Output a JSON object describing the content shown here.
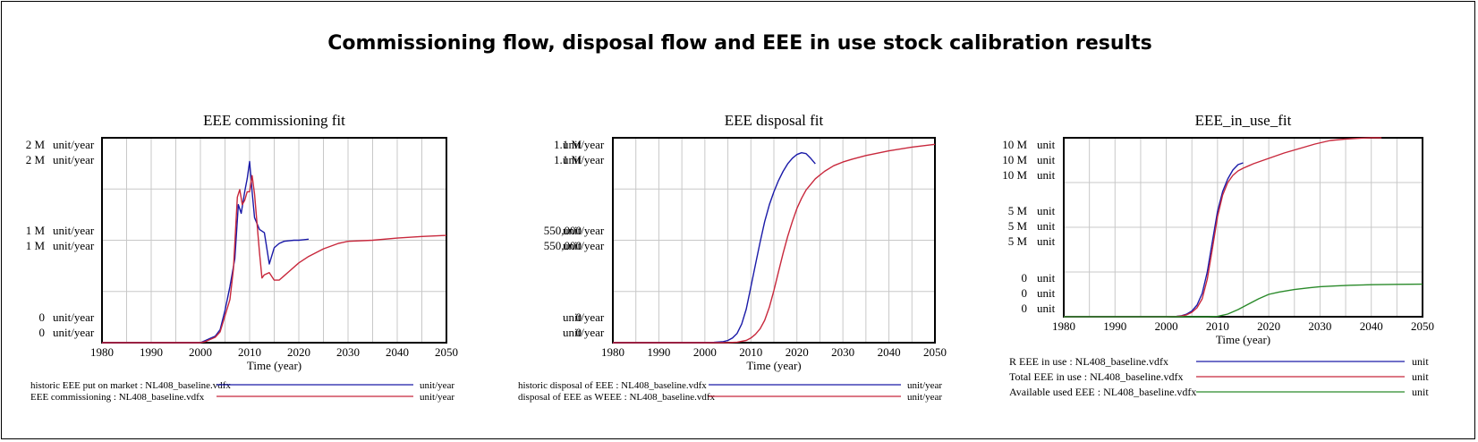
{
  "page_title": "Commissioning flow, disposal flow and EEE in use stock calibration results",
  "colors": {
    "blue": "#1a1aa8",
    "red": "#c8283c",
    "green": "#2a8a2a",
    "grid": "#c8c8c8"
  },
  "chart_data": [
    {
      "type": "line",
      "title": "EEE commissioning fit",
      "xlabel": "Time (year)",
      "xlim": [
        1980,
        2050
      ],
      "xticks": [
        "1980",
        "1990",
        "2000",
        "2010",
        "2020",
        "2030",
        "2040",
        "2050"
      ],
      "yunit": "unit/year",
      "yticks": [
        {
          "label": "2 M",
          "unit": "unit/year"
        },
        {
          "label": "2 M",
          "unit": "unit/year"
        },
        {
          "label": "1 M",
          "unit": "unit/year"
        },
        {
          "label": "1 M",
          "unit": "unit/year"
        },
        {
          "label": "0",
          "unit": "unit/year"
        },
        {
          "label": "0",
          "unit": "unit/year"
        }
      ],
      "ylim": [
        0,
        1.9
      ],
      "series": [
        {
          "name": "historic EEE put on market : NL408_baseline.vdfx",
          "unit": "unit/year",
          "color": "#1a1aa8",
          "x": [
            1980,
            2000,
            2001,
            2002,
            2003,
            2004,
            2005,
            2006,
            2007,
            2007.7,
            2008.3,
            2009,
            2009.5,
            2010,
            2010.5,
            2011,
            2012,
            2013,
            2014,
            2015,
            2016,
            2017,
            2018,
            2019,
            2020,
            2021,
            2022
          ],
          "y": [
            0,
            0,
            0.02,
            0.04,
            0.06,
            0.12,
            0.3,
            0.52,
            0.78,
            1.28,
            1.2,
            1.4,
            1.52,
            1.68,
            1.4,
            1.16,
            1.05,
            1.02,
            0.73,
            0.88,
            0.92,
            0.94,
            0.945,
            0.95,
            0.95,
            0.955,
            0.96
          ]
        },
        {
          "name": "EEE commissioning : NL408_baseline.vdfx",
          "unit": "unit/year",
          "color": "#c8283c",
          "x": [
            1980,
            2000,
            2001,
            2002,
            2003,
            2004,
            2005,
            2006,
            2006.7,
            2007.5,
            2008,
            2008.5,
            2009,
            2009.5,
            2010,
            2010.5,
            2011,
            2012,
            2012.5,
            2013,
            2014,
            2015,
            2016,
            2017,
            2018,
            2020,
            2022,
            2025,
            2028,
            2030,
            2035,
            2040,
            2045,
            2050
          ],
          "y": [
            0,
            0,
            0.01,
            0.03,
            0.05,
            0.1,
            0.25,
            0.4,
            0.68,
            1.35,
            1.42,
            1.28,
            1.32,
            1.4,
            1.4,
            1.55,
            1.38,
            0.84,
            0.6,
            0.63,
            0.65,
            0.58,
            0.58,
            0.62,
            0.66,
            0.74,
            0.8,
            0.87,
            0.92,
            0.94,
            0.95,
            0.97,
            0.985,
            0.995
          ]
        }
      ]
    },
    {
      "type": "line",
      "title": "EEE disposal fit",
      "xlabel": "Time (year)",
      "xlim": [
        1980,
        2050
      ],
      "xticks": [
        "1980",
        "1990",
        "2000",
        "2010",
        "2020",
        "2030",
        "2040",
        "2050"
      ],
      "yunit": "unit/year",
      "yticks": [
        {
          "label": "1.1 M",
          "unit": "unit/year"
        },
        {
          "label": "1.1 M",
          "unit": "unit/year"
        },
        {
          "label": "550,000",
          "unit": "unit/year"
        },
        {
          "label": "550,000",
          "unit": "unit/year"
        },
        {
          "label": "0",
          "unit": "unit/year"
        },
        {
          "label": "0",
          "unit": "unit/year"
        }
      ],
      "ylim": [
        0,
        1100000
      ],
      "series": [
        {
          "name": "historic disposal of EEE : NL408_baseline.vdfx",
          "unit": "unit/year",
          "color": "#1a1aa8",
          "x": [
            1980,
            2000,
            2002,
            2004,
            2005,
            2006,
            2007,
            2008,
            2009,
            2010,
            2011,
            2012,
            2013,
            2014,
            2015,
            2016,
            2017,
            2018,
            2019,
            2020,
            2021,
            2022,
            2023,
            2024
          ],
          "y": [
            0,
            0,
            2000,
            6000,
            12000,
            25000,
            50000,
            100000,
            180000,
            300000,
            420000,
            540000,
            650000,
            740000,
            810000,
            870000,
            920000,
            960000,
            990000,
            1010000,
            1020000,
            1015000,
            990000,
            960000
          ]
        },
        {
          "name": "disposal of EEE as WEEE : NL408_baseline.vdfx",
          "unit": "unit/year",
          "color": "#c8283c",
          "x": [
            1980,
            2005,
            2007,
            2009,
            2010,
            2011,
            2012,
            2013,
            2014,
            2015,
            2016,
            2017,
            2018,
            2019,
            2020,
            2021,
            2022,
            2024,
            2026,
            2028,
            2030,
            2032,
            2035,
            2040,
            2045,
            2050
          ],
          "y": [
            0,
            0,
            3000,
            12000,
            25000,
            45000,
            75000,
            120000,
            190000,
            280000,
            380000,
            480000,
            570000,
            650000,
            720000,
            775000,
            820000,
            880000,
            920000,
            950000,
            970000,
            985000,
            1005000,
            1030000,
            1050000,
            1065000
          ]
        }
      ]
    },
    {
      "type": "line",
      "title": "EEE_in_use_fit",
      "xlabel": "Time (year)",
      "xlim": [
        1980,
        2050
      ],
      "xticks": [
        "1980",
        "1990",
        "2000",
        "2010",
        "2020",
        "2030",
        "2040",
        "2050"
      ],
      "yunit": "unit",
      "yticks": [
        {
          "label": "10 M",
          "unit": "unit"
        },
        {
          "label": "10 M",
          "unit": "unit"
        },
        {
          "label": "10 M",
          "unit": "unit"
        },
        {
          "label": "5 M",
          "unit": "unit"
        },
        {
          "label": "5 M",
          "unit": "unit"
        },
        {
          "label": "5 M",
          "unit": "unit"
        },
        {
          "label": "0",
          "unit": "unit"
        },
        {
          "label": "0",
          "unit": "unit"
        },
        {
          "label": "0",
          "unit": "unit"
        }
      ],
      "ylim": [
        0,
        10000000
      ],
      "series": [
        {
          "name": "R EEE in use : NL408_baseline.vdfx",
          "unit": "unit",
          "color": "#1a1aa8",
          "x": [
            1980,
            2000,
            2002,
            2003,
            2004,
            2005,
            2006,
            2007,
            2008,
            2009,
            2010,
            2011,
            2012,
            2013,
            2014,
            2015
          ],
          "y": [
            0,
            0,
            20000,
            60000,
            150000,
            320000,
            650000,
            1300000,
            2500000,
            4200000,
            5900000,
            7000000,
            7700000,
            8200000,
            8500000,
            8600000
          ]
        },
        {
          "name": "Total EEE in use : NL408_baseline.vdfx",
          "unit": "unit",
          "color": "#c8283c",
          "x": [
            1980,
            2000,
            2002,
            2003,
            2004,
            2005,
            2006,
            2007,
            2008,
            2009,
            2010,
            2011,
            2012,
            2013,
            2014,
            2015,
            2017,
            2020,
            2023,
            2026,
            2029,
            2032,
            2035,
            2038,
            2040,
            2042
          ],
          "y": [
            0,
            0,
            15000,
            45000,
            110000,
            250000,
            500000,
            1000000,
            2100000,
            3800000,
            5600000,
            6800000,
            7500000,
            7900000,
            8150000,
            8300000,
            8550000,
            8850000,
            9150000,
            9400000,
            9650000,
            9850000,
            9930000,
            9980000,
            10000000,
            10020000
          ]
        },
        {
          "name": "Available used EEE : NL408_baseline.vdfx",
          "unit": "unit",
          "color": "#2a8a2a",
          "x": [
            1980,
            2008,
            2010,
            2012,
            2014,
            2016,
            2018,
            2020,
            2022,
            2025,
            2028,
            2030,
            2033,
            2036,
            2040,
            2045,
            2050
          ],
          "y": [
            0,
            0,
            20000,
            150000,
            400000,
            700000,
            1000000,
            1250000,
            1380000,
            1520000,
            1620000,
            1680000,
            1720000,
            1760000,
            1790000,
            1810000,
            1820000
          ]
        }
      ]
    }
  ]
}
